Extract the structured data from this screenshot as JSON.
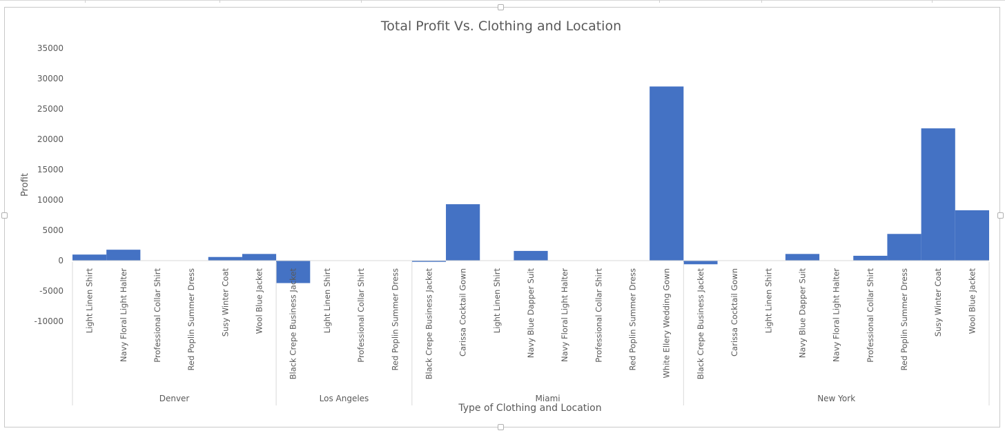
{
  "chart_data": {
    "type": "bar",
    "title": "Total Profit Vs. Clothing and Location",
    "xlabel": "Type of Clothing and Location",
    "ylabel": "Profit",
    "ylim": [
      -10000,
      35000
    ],
    "yticks": [
      35000,
      30000,
      25000,
      20000,
      15000,
      10000,
      5000,
      0,
      -5000,
      -10000
    ],
    "bar_color": "#4472C4",
    "grid": false,
    "legend": "none",
    "groups": [
      {
        "name": "Denver",
        "categories": [
          "Light Linen Shirt",
          "Navy Floral Light Halter",
          "Professional Collar Shirt",
          "Red Poplin Summer Dress",
          "Susy Winter Coat",
          "Wool Blue Jacket"
        ],
        "values": [
          1000,
          1800,
          0,
          0,
          600,
          1100
        ]
      },
      {
        "name": "Los Angeles",
        "categories": [
          "Black Crepe Business Jacket",
          "Light Linen Shirt",
          "Professional Collar Shirt",
          "Red Poplin Summer Dress"
        ],
        "values": [
          -3700,
          0,
          0,
          0
        ]
      },
      {
        "name": "Miami",
        "categories": [
          "Black Crepe Business Jacket",
          "Carissa Cocktail Gown",
          "Light Linen Shirt",
          "Navy Blue Dapper Suit",
          "Navy Floral Light Halter",
          "Professional Collar Shirt",
          "Red Poplin Summer Dress",
          "White Ellery Wedding Gown"
        ],
        "values": [
          -200,
          9300,
          0,
          1600,
          0,
          0,
          0,
          28700
        ]
      },
      {
        "name": "New York",
        "categories": [
          "Black Crepe Business Jacket",
          "Carissa Cocktail Gown",
          "Light Linen Shirt",
          "Navy Blue Dapper Suit",
          "Navy Floral Light Halter",
          "Professional Collar Shirt",
          "Red Poplin Summer Dress",
          "Susy Winter Coat",
          "Wool Blue Jacket"
        ],
        "values": [
          -600,
          0,
          0,
          1100,
          0,
          800,
          4400,
          21800,
          8300
        ]
      }
    ]
  }
}
